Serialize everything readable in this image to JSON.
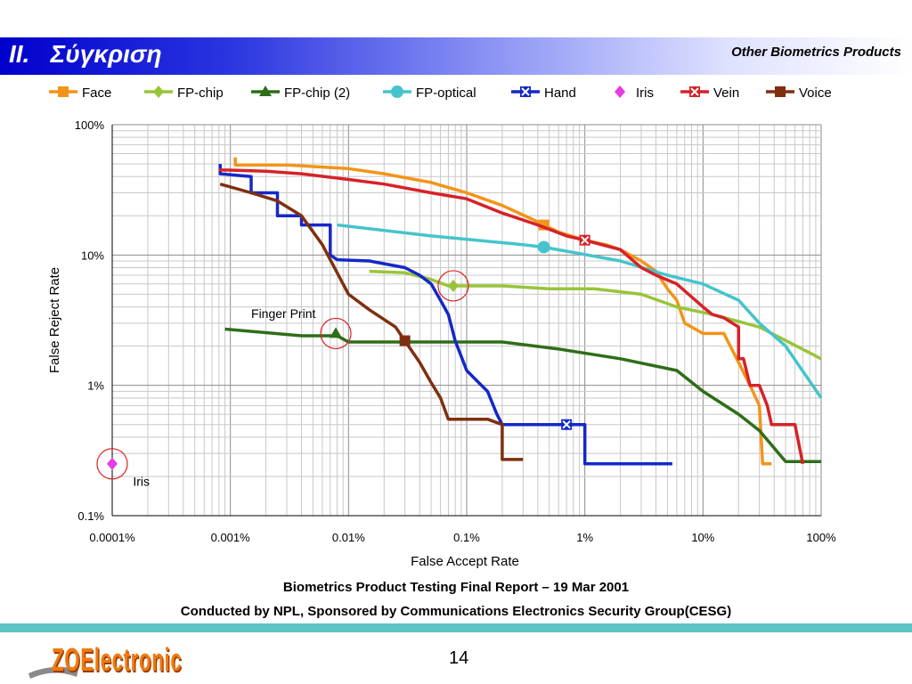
{
  "slide": {
    "title": "II.   Σύγκριση",
    "section": "Other Biometrics Products",
    "caption_line1": "Biometrics Product Testing Final Report – 19 Mar 2001",
    "caption_line2": "Conducted by NPL, Sponsored by Communications Electronics Security Group(CESG)",
    "page_number": "14",
    "logo_text": "ZOElectronic",
    "colors": {
      "header_start": "#0000cc",
      "footer_bar": "#5fc4c4",
      "logo_orange": "#f07a10"
    }
  },
  "chart_data": {
    "type": "line",
    "x_scale": "log",
    "y_scale": "log",
    "xlabel": "False Accept Rate",
    "ylabel": "False Reject Rate",
    "xlim": [
      0.0001,
      100
    ],
    "ylim": [
      0.1,
      100
    ],
    "x_ticks": [
      "0.0001%",
      "0.001%",
      "0.01%",
      "0.1%",
      "1%",
      "10%",
      "100%"
    ],
    "y_ticks": [
      "0.1%",
      "1%",
      "10%",
      "100%"
    ],
    "grid": true,
    "legend_position": "top",
    "series": [
      {
        "name": "Face",
        "color": "#f39418",
        "marker": "square",
        "points": [
          [
            0.0011,
            56
          ],
          [
            0.0011,
            49
          ],
          [
            0.003,
            49
          ],
          [
            0.01,
            46
          ],
          [
            0.02,
            42
          ],
          [
            0.05,
            36
          ],
          [
            0.1,
            30
          ],
          [
            0.2,
            24
          ],
          [
            0.35,
            19
          ],
          [
            0.45,
            17
          ],
          [
            0.6,
            15
          ],
          [
            1,
            13
          ],
          [
            1.5,
            12
          ],
          [
            2,
            11
          ],
          [
            3,
            9
          ],
          [
            4,
            7.5
          ],
          [
            5,
            5.5
          ],
          [
            6,
            4.5
          ],
          [
            7,
            3
          ],
          [
            10,
            2.5
          ],
          [
            15,
            2.5
          ],
          [
            20,
            1.5
          ],
          [
            25,
            1
          ],
          [
            30,
            0.7
          ],
          [
            32,
            0.25
          ],
          [
            38,
            0.25
          ]
        ],
        "marked": [
          [
            0.45,
            17
          ]
        ]
      },
      {
        "name": "FP-chip",
        "color": "#99c43a",
        "marker": "diamond",
        "points": [
          [
            0.015,
            7.5
          ],
          [
            0.03,
            7.3
          ],
          [
            0.05,
            6.5
          ],
          [
            0.07,
            5.8
          ],
          [
            0.2,
            5.8
          ],
          [
            0.5,
            5.5
          ],
          [
            1.2,
            5.5
          ],
          [
            3,
            5
          ],
          [
            6,
            4
          ],
          [
            12,
            3.5
          ],
          [
            30,
            2.8
          ],
          [
            100,
            1.6
          ]
        ],
        "marked": [
          [
            0.077,
            5.8
          ]
        ]
      },
      {
        "name": "FP-chip (2)",
        "color": "#2e6e18",
        "marker": "triangle",
        "points": [
          [
            0.0009,
            2.7
          ],
          [
            0.004,
            2.4
          ],
          [
            0.008,
            2.4
          ],
          [
            0.01,
            2.15
          ],
          [
            0.2,
            2.15
          ],
          [
            0.6,
            1.9
          ],
          [
            2,
            1.6
          ],
          [
            6,
            1.3
          ],
          [
            10,
            0.9
          ],
          [
            20,
            0.6
          ],
          [
            30,
            0.45
          ],
          [
            50,
            0.26
          ],
          [
            100,
            0.26
          ]
        ],
        "marked": [
          [
            0.0078,
            2.5
          ]
        ]
      },
      {
        "name": "FP-optical",
        "color": "#45c4cc",
        "marker": "circle",
        "points": [
          [
            0.008,
            17
          ],
          [
            0.05,
            14
          ],
          [
            0.3,
            12
          ],
          [
            0.45,
            11.5
          ],
          [
            2,
            9
          ],
          [
            5,
            7
          ],
          [
            10,
            6
          ],
          [
            20,
            4.5
          ],
          [
            30,
            3
          ],
          [
            50,
            2
          ],
          [
            100,
            0.8
          ]
        ],
        "marked": [
          [
            0.45,
            11.5
          ]
        ]
      },
      {
        "name": "Hand",
        "color": "#1428c8",
        "marker": "x",
        "points": [
          [
            0.00082,
            50
          ],
          [
            0.00082,
            42
          ],
          [
            0.0015,
            40
          ],
          [
            0.0015,
            30
          ],
          [
            0.0025,
            30
          ],
          [
            0.0025,
            20
          ],
          [
            0.004,
            20
          ],
          [
            0.004,
            17
          ],
          [
            0.007,
            17
          ],
          [
            0.007,
            10
          ],
          [
            0.008,
            9.2
          ],
          [
            0.015,
            9
          ],
          [
            0.03,
            8
          ],
          [
            0.04,
            7
          ],
          [
            0.05,
            6
          ],
          [
            0.06,
            4.5
          ],
          [
            0.07,
            3.5
          ],
          [
            0.08,
            2.2
          ],
          [
            0.1,
            1.3
          ],
          [
            0.12,
            1.1
          ],
          [
            0.15,
            0.9
          ],
          [
            0.18,
            0.6
          ],
          [
            0.2,
            0.5
          ],
          [
            0.7,
            0.5
          ],
          [
            1,
            0.5
          ],
          [
            1,
            0.25
          ],
          [
            5.5,
            0.25
          ]
        ],
        "marked": [
          [
            0.7,
            0.5
          ]
        ]
      },
      {
        "name": "Iris",
        "color": "#e63ce6",
        "marker": "diamond",
        "points": [],
        "marked": [
          [
            0.0001,
            0.25
          ]
        ]
      },
      {
        "name": "Vein",
        "color": "#d62228",
        "marker": "x",
        "points": [
          [
            0.0008,
            45
          ],
          [
            0.002,
            44
          ],
          [
            0.004,
            42
          ],
          [
            0.01,
            38
          ],
          [
            0.02,
            35
          ],
          [
            0.05,
            30
          ],
          [
            0.1,
            27
          ],
          [
            0.2,
            21
          ],
          [
            0.4,
            17
          ],
          [
            0.7,
            14
          ],
          [
            1,
            13
          ],
          [
            2,
            11
          ],
          [
            3,
            8
          ],
          [
            4,
            7
          ],
          [
            6,
            6
          ],
          [
            10,
            4
          ],
          [
            12,
            3.5
          ],
          [
            15,
            3.3
          ],
          [
            20,
            2.8
          ],
          [
            20,
            1.6
          ],
          [
            22,
            1.6
          ],
          [
            25,
            1
          ],
          [
            30,
            1
          ],
          [
            35,
            0.7
          ],
          [
            38,
            0.5
          ],
          [
            50,
            0.5
          ],
          [
            60,
            0.5
          ],
          [
            70,
            0.25
          ]
        ],
        "marked": [
          [
            1,
            13
          ]
        ]
      },
      {
        "name": "Voice",
        "color": "#7f2f10",
        "marker": "square",
        "points": [
          [
            0.00082,
            35
          ],
          [
            0.0015,
            30
          ],
          [
            0.0025,
            26
          ],
          [
            0.004,
            20
          ],
          [
            0.006,
            12
          ],
          [
            0.01,
            5
          ],
          [
            0.015,
            3.8
          ],
          [
            0.025,
            2.8
          ],
          [
            0.03,
            2.2
          ],
          [
            0.04,
            1.5
          ],
          [
            0.05,
            1.05
          ],
          [
            0.06,
            0.8
          ],
          [
            0.07,
            0.55
          ],
          [
            0.15,
            0.55
          ],
          [
            0.2,
            0.5
          ],
          [
            0.2,
            0.27
          ],
          [
            0.3,
            0.27
          ]
        ],
        "marked": [
          [
            0.03,
            2.2
          ]
        ]
      }
    ],
    "annotations": [
      {
        "text": "Finger Print",
        "at": [
          0.0015,
          3.3
        ]
      },
      {
        "text": "Iris",
        "at": [
          0.00015,
          0.17
        ]
      }
    ],
    "highlight_circles": [
      [
        0.0001,
        0.25
      ],
      [
        0.0078,
        2.5
      ],
      [
        0.077,
        5.8
      ]
    ]
  }
}
